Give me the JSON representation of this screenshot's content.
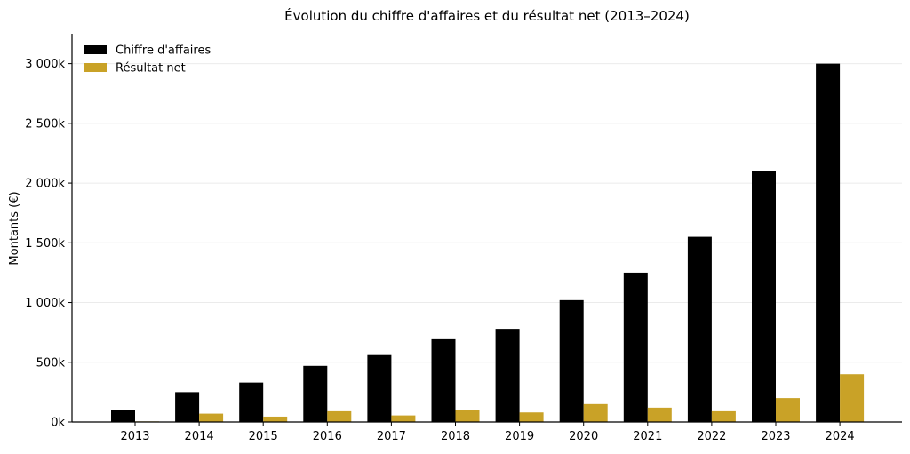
{
  "chart_data": {
    "type": "bar",
    "title": "Évolution du chiffre d'affaires et du résultat net (2013–2024)",
    "xlabel": "",
    "ylabel": "Montants (€)",
    "categories": [
      "2013",
      "2014",
      "2015",
      "2016",
      "2017",
      "2018",
      "2019",
      "2020",
      "2021",
      "2022",
      "2023",
      "2024"
    ],
    "series": [
      {
        "name": "Chiffre d'affaires",
        "color": "#000000",
        "values": [
          100000,
          250000,
          330000,
          470000,
          560000,
          700000,
          780000,
          1020000,
          1250000,
          1550000,
          2100000,
          3000000
        ]
      },
      {
        "name": "Résultat net",
        "color": "#C9A227",
        "values": [
          5000,
          70000,
          45000,
          90000,
          55000,
          100000,
          80000,
          150000,
          120000,
          90000,
          200000,
          400000
        ]
      }
    ],
    "ylim": [
      0,
      3250000
    ],
    "yticks": [
      0,
      500000,
      1000000,
      1500000,
      2000000,
      2500000,
      3000000
    ],
    "ytick_labels": [
      "0k",
      "500k",
      "1 000k",
      "1 500k",
      "2 000k",
      "2 500k",
      "3 000k"
    ],
    "grid": "horizontal",
    "legend_position": "top-left"
  }
}
